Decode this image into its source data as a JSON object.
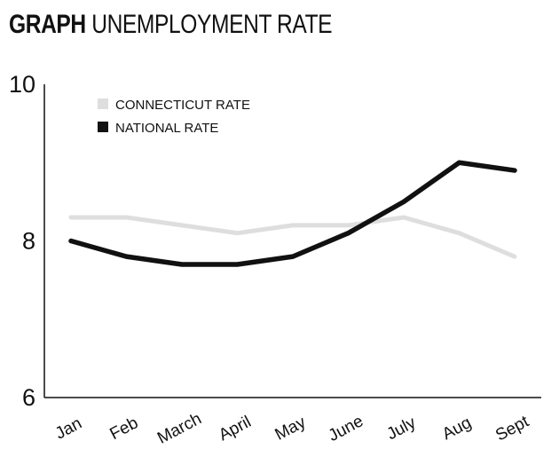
{
  "header": {
    "kicker": "GRAPH",
    "title": "UNEMPLOYMENT RATE"
  },
  "chart_data": {
    "type": "line",
    "title": "UNEMPLOYMENT RATE",
    "xlabel": "",
    "ylabel": "",
    "categories": [
      "Jan",
      "Feb",
      "March",
      "April",
      "May",
      "June",
      "July",
      "Aug",
      "Sept"
    ],
    "ylim": [
      6,
      10
    ],
    "yticks": [
      "6",
      "8",
      "10"
    ],
    "grid": false,
    "legend_position": "top-left",
    "series": [
      {
        "name": "CONNECTICUT RATE",
        "color": "#dedede",
        "values": [
          8.3,
          8.3,
          8.2,
          8.1,
          8.2,
          8.2,
          8.3,
          8.1,
          7.8
        ]
      },
      {
        "name": "NATIONAL RATE",
        "color": "#111111",
        "values": [
          8.0,
          7.8,
          7.7,
          7.7,
          7.8,
          8.1,
          8.5,
          9.0,
          8.9
        ]
      }
    ]
  }
}
